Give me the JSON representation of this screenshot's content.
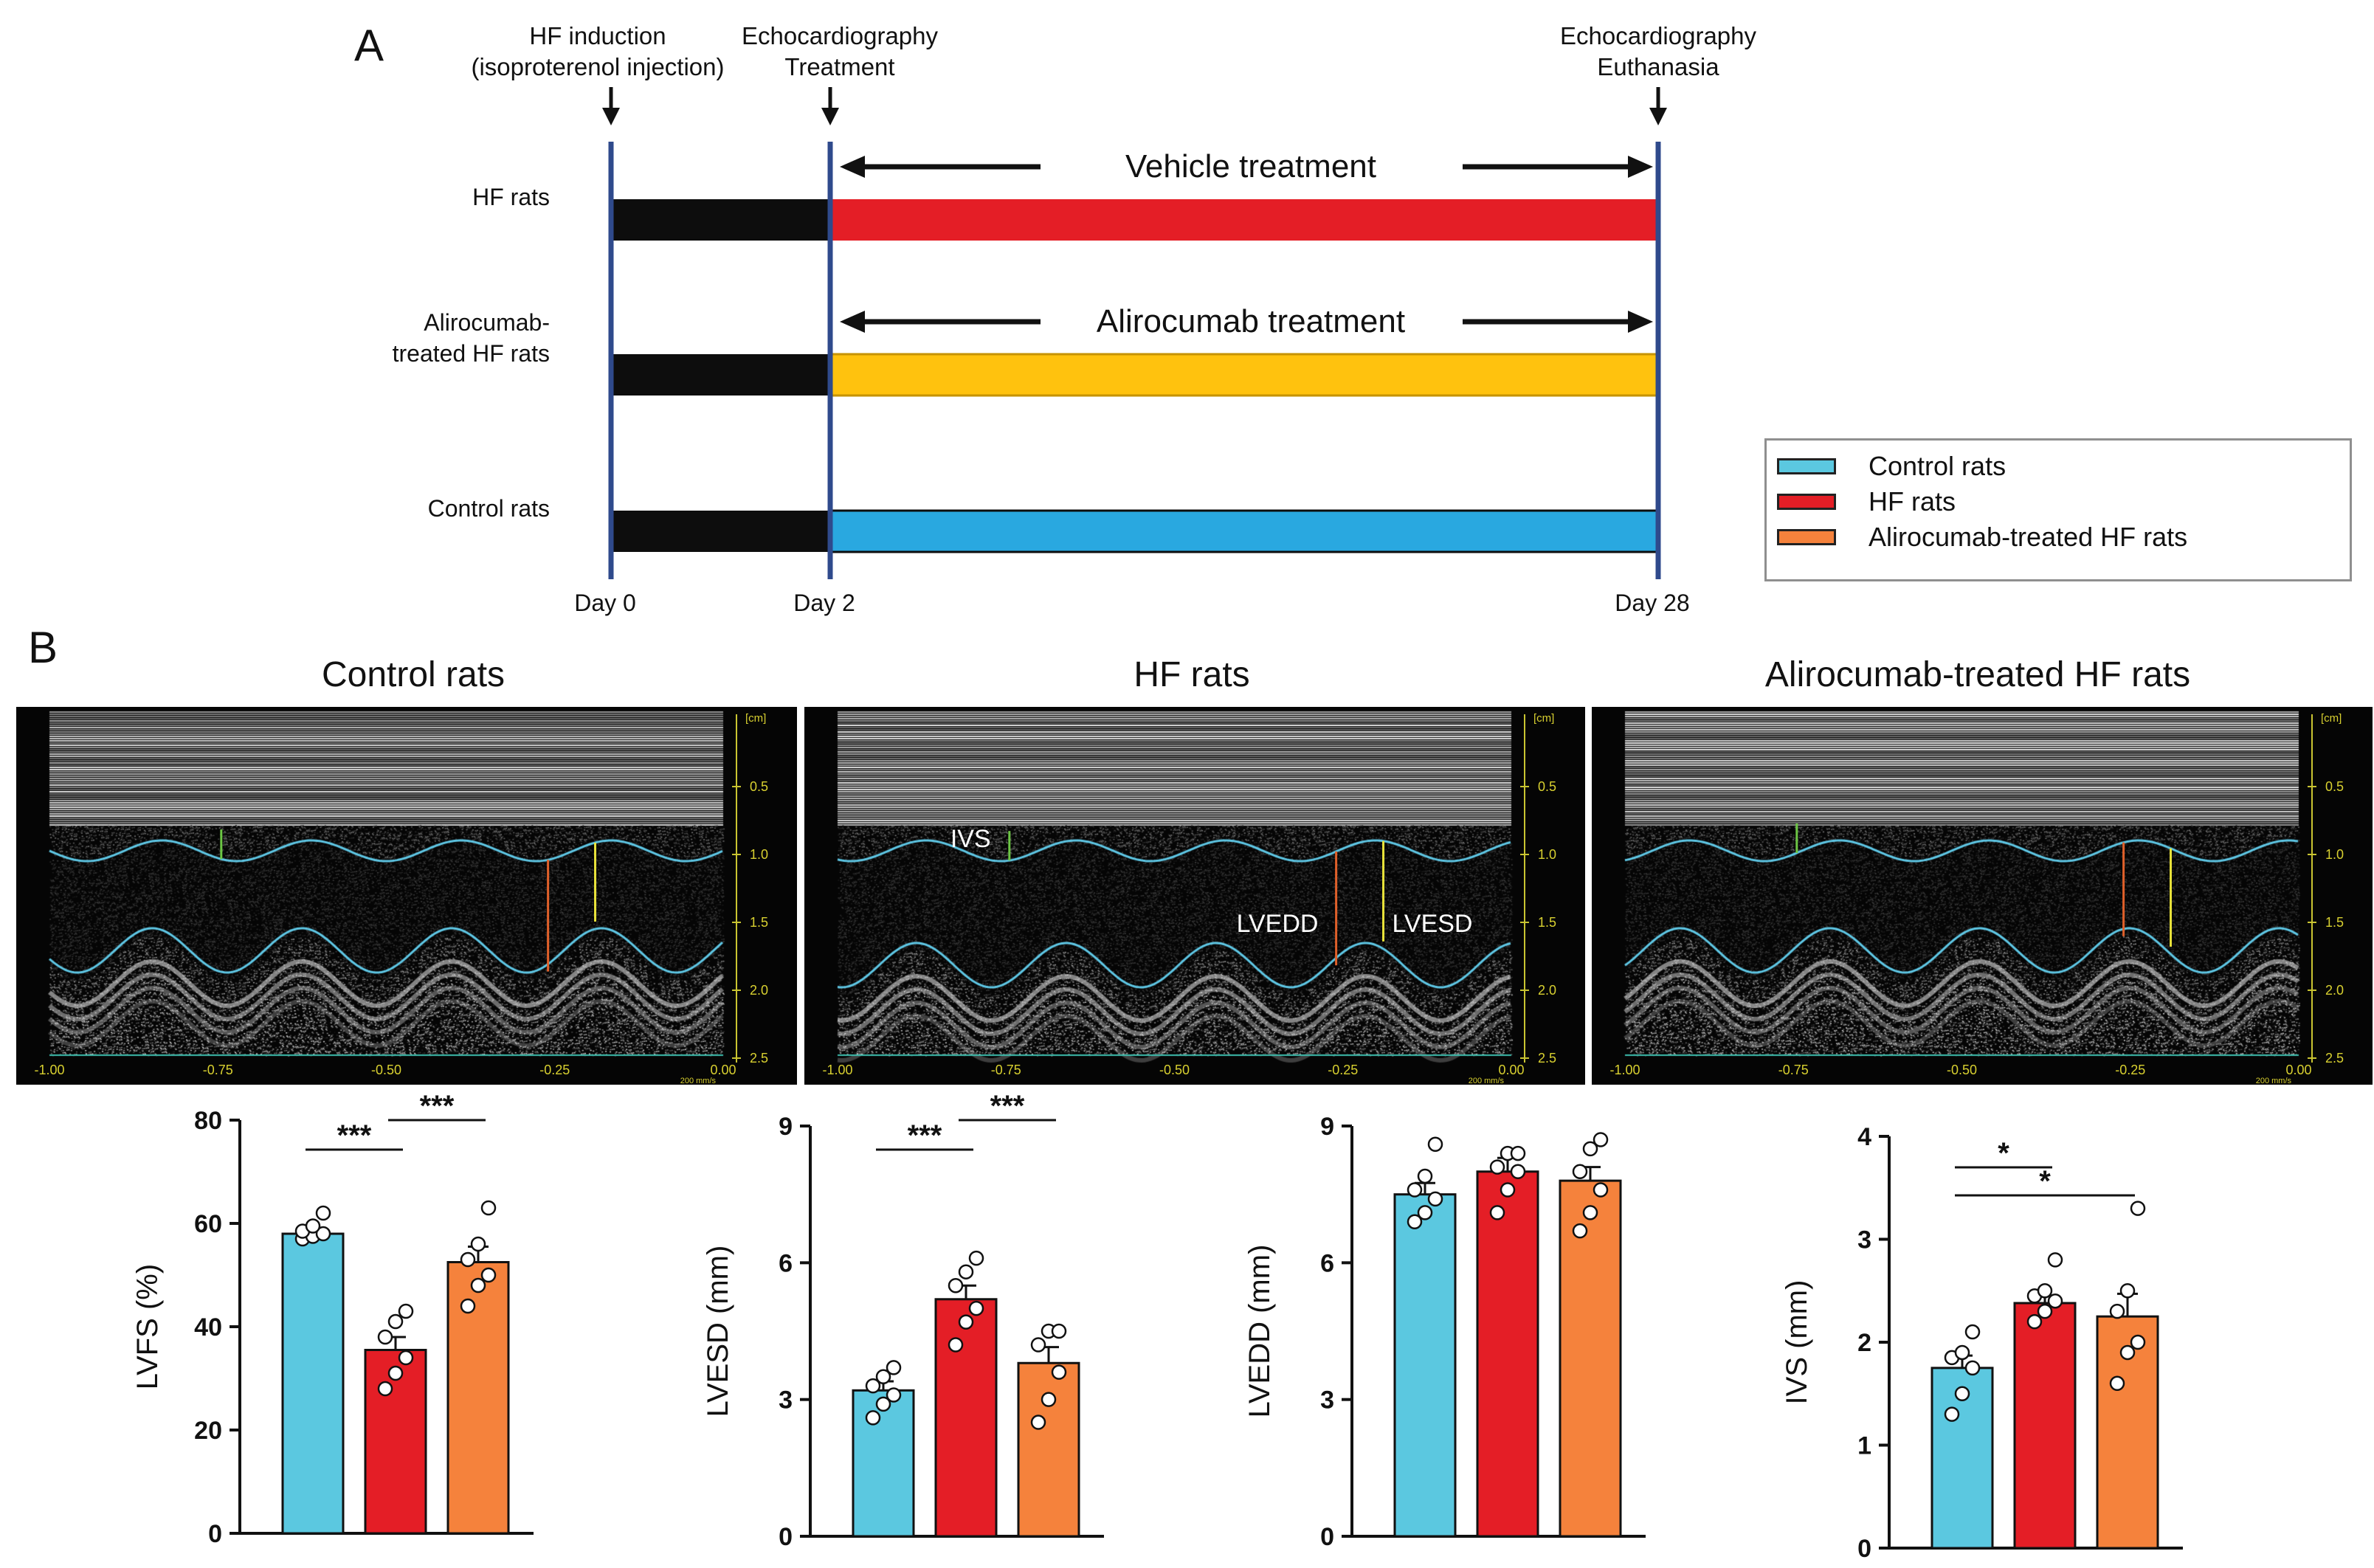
{
  "panel_a": {
    "label": "A",
    "events": [
      {
        "lines": [
          "HF induction",
          "(isoproterenol injection)"
        ]
      },
      {
        "lines": [
          "Echocardiography",
          "Treatment"
        ]
      },
      {
        "lines": [
          "Echocardiography",
          "Euthanasia"
        ]
      }
    ],
    "days": [
      "Day 0",
      "Day 2",
      "Day 28"
    ],
    "groups": [
      {
        "lines": [
          "HF rats"
        ],
        "color": "#e41e26",
        "treatment": "Vehicle treatment"
      },
      {
        "lines": [
          "Alirocumab-",
          "treated HF rats"
        ],
        "color": "#ffc20e",
        "treatment": "Alirocumab treatment"
      },
      {
        "lines": [
          "Control rats"
        ],
        "color": "#29a8e0",
        "treatment": ""
      }
    ],
    "legend": [
      {
        "label": "Control rats",
        "color": "#5bc8e0"
      },
      {
        "label": "HF rats",
        "color": "#e41e26"
      },
      {
        "label": "Alirocumab-treated HF rats",
        "color": "#f5823c"
      }
    ]
  },
  "panel_b": {
    "label": "B",
    "echo_panels": [
      {
        "title": "Control rats",
        "labels": []
      },
      {
        "title": "HF rats",
        "labels": [
          "IVS",
          "LVEDD",
          "LVESD"
        ]
      },
      {
        "title": "Alirocumab-treated HF rats",
        "labels": []
      }
    ],
    "echo_x_ticks": [
      "-1.00",
      "-0.75",
      "-0.50",
      "-0.25",
      "0.00"
    ],
    "echo_y_ticks": [
      "0.5",
      "1.0",
      "1.5",
      "2.0",
      "2.5"
    ],
    "echo_unit": "[cm]",
    "echo_speed": "200 mm/s"
  },
  "chart_data": [
    {
      "type": "bar",
      "title": "",
      "ylabel": "LVFS (%)",
      "categories": [
        "Control rats",
        "HF rats",
        "Alirocumab-treated HF rats"
      ],
      "values": [
        58,
        35.5,
        52.5
      ],
      "errors": [
        1.0,
        2.5,
        3.0
      ],
      "colors": [
        "#5bc8e0",
        "#e41e26",
        "#f5823c"
      ],
      "points": [
        [
          57,
          57.5,
          58,
          58.5,
          59.5,
          62
        ],
        [
          28,
          31,
          34,
          38,
          41,
          43
        ],
        [
          44,
          48,
          50,
          53,
          56,
          63
        ]
      ],
      "ylim": [
        0,
        80
      ],
      "yticks": [
        "0",
        "20",
        "40",
        "60",
        "80"
      ],
      "significance": [
        {
          "from": 0,
          "to": 1,
          "label": "***",
          "level": 0
        },
        {
          "from": 1,
          "to": 2,
          "label": "***",
          "level": 1
        }
      ]
    },
    {
      "type": "bar",
      "title": "",
      "ylabel": "LVESD (mm)",
      "categories": [
        "Control rats",
        "HF rats",
        "Alirocumab-treated HF rats"
      ],
      "values": [
        3.2,
        5.2,
        3.8
      ],
      "errors": [
        0.2,
        0.3,
        0.35
      ],
      "colors": [
        "#5bc8e0",
        "#e41e26",
        "#f5823c"
      ],
      "points": [
        [
          2.6,
          2.9,
          3.1,
          3.3,
          3.5,
          3.7
        ],
        [
          4.2,
          4.7,
          5.0,
          5.5,
          5.8,
          6.1
        ],
        [
          2.5,
          3.0,
          3.6,
          4.2,
          4.5,
          4.5
        ]
      ],
      "ylim": [
        0,
        9
      ],
      "yticks": [
        "0",
        "3",
        "6",
        "9"
      ],
      "significance": [
        {
          "from": 0,
          "to": 1,
          "label": "***",
          "level": 0
        },
        {
          "from": 1,
          "to": 2,
          "label": "***",
          "level": 1
        }
      ]
    },
    {
      "type": "bar",
      "title": "",
      "ylabel": "LVEDD (mm)",
      "categories": [
        "Control rats",
        "HF rats",
        "Alirocumab-treated HF rats"
      ],
      "values": [
        7.5,
        8.0,
        7.8
      ],
      "errors": [
        0.25,
        0.3,
        0.3
      ],
      "colors": [
        "#5bc8e0",
        "#e41e26",
        "#f5823c"
      ],
      "points": [
        [
          6.9,
          7.1,
          7.4,
          7.6,
          7.9,
          8.6
        ],
        [
          7.1,
          7.6,
          8.0,
          8.1,
          8.4,
          8.4
        ],
        [
          6.7,
          7.1,
          7.6,
          8.0,
          8.5,
          8.7
        ]
      ],
      "ylim": [
        0,
        9
      ],
      "yticks": [
        "0",
        "3",
        "6",
        "9"
      ],
      "significance": []
    },
    {
      "type": "bar",
      "title": "",
      "ylabel": "IVS (mm)",
      "categories": [
        "Control rats",
        "HF rats",
        "Alirocumab-treated HF rats"
      ],
      "values": [
        1.75,
        2.38,
        2.25
      ],
      "errors": [
        0.12,
        0.07,
        0.22
      ],
      "colors": [
        "#5bc8e0",
        "#e41e26",
        "#f5823c"
      ],
      "points": [
        [
          1.3,
          1.5,
          1.75,
          1.85,
          1.9,
          2.1
        ],
        [
          2.2,
          2.3,
          2.4,
          2.45,
          2.5,
          2.8
        ],
        [
          1.6,
          1.9,
          2.0,
          2.3,
          2.5,
          3.3
        ]
      ],
      "ylim": [
        0,
        4
      ],
      "yticks": [
        "0",
        "1",
        "2",
        "3",
        "4"
      ],
      "significance": [
        {
          "from": 0,
          "to": 1,
          "label": "*",
          "level": 0
        },
        {
          "from": 0,
          "to": 2,
          "label": "*",
          "level": 1
        }
      ]
    }
  ]
}
